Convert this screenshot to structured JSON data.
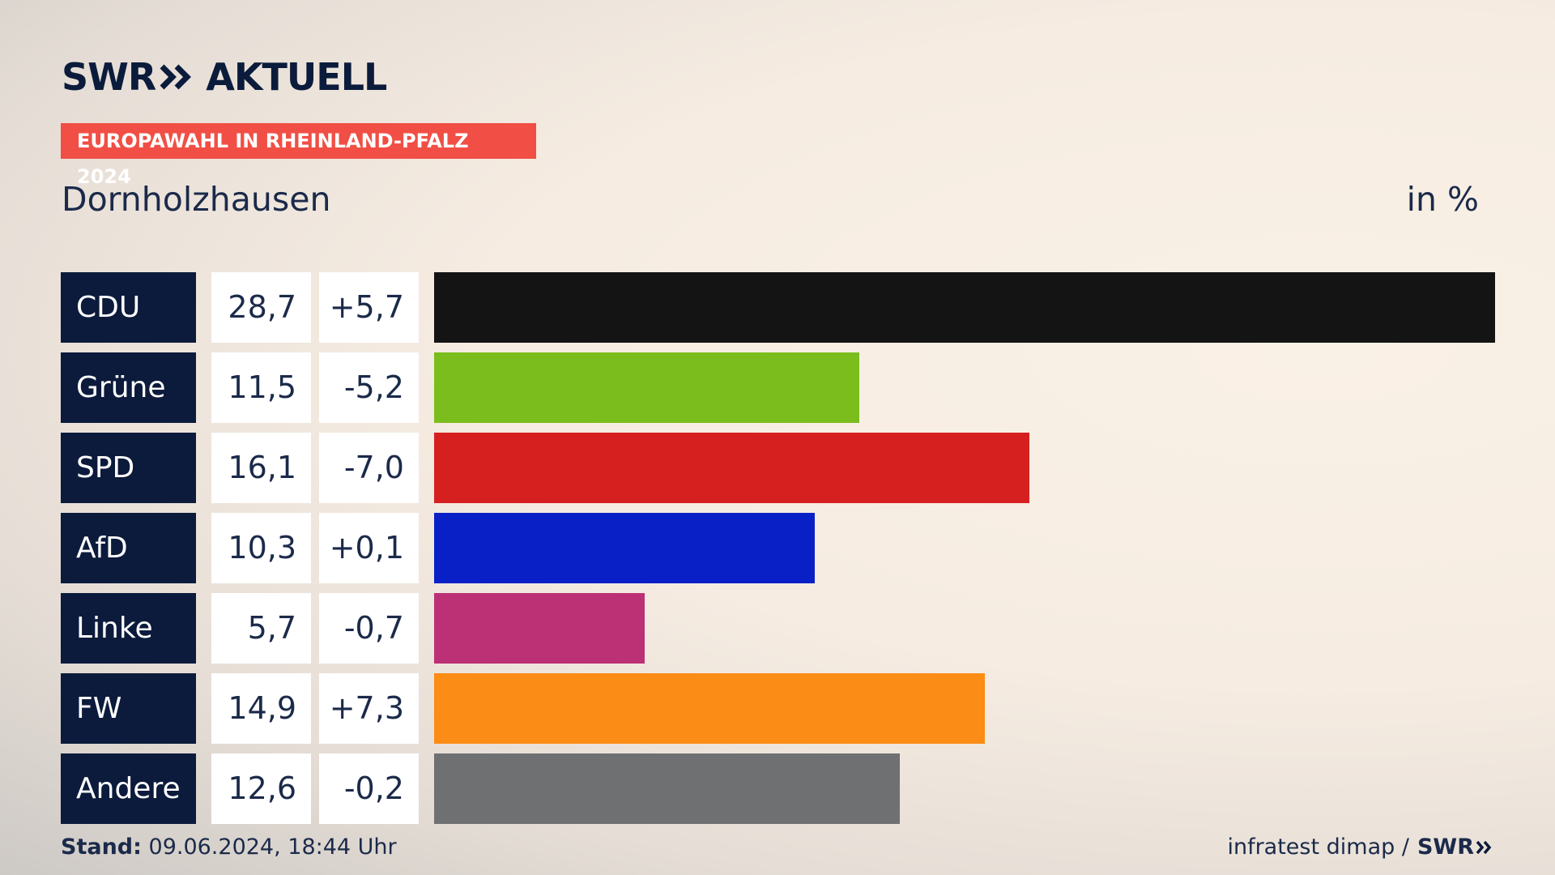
{
  "header": {
    "logo_left": "SWR",
    "logo_right": "AKTUELL",
    "badge": "EUROPAWAHL IN RHEINLAND-PFALZ 2024",
    "location": "Dornholzhausen",
    "unit": "in %"
  },
  "chart_data": {
    "type": "bar",
    "orientation": "horizontal",
    "title": "Dornholzhausen",
    "unit_label": "in %",
    "categories": [
      "CDU",
      "Grüne",
      "SPD",
      "AfD",
      "Linke",
      "FW",
      "Andere"
    ],
    "values": [
      28.7,
      11.5,
      16.1,
      10.3,
      5.7,
      14.9,
      12.6
    ],
    "value_labels": [
      "28,7",
      "11,5",
      "16,1",
      "10,3",
      "5,7",
      "14,9",
      "12,6"
    ],
    "diff_labels": [
      "+5,7",
      "-5,2",
      "-7,0",
      "+0,1",
      "-0,7",
      "+7,3",
      "-0,2"
    ],
    "colors": [
      "#141414",
      "#7bbd1c",
      "#d61f1f",
      "#0a20c7",
      "#bc3075",
      "#fb8c15",
      "#6f7072"
    ],
    "xlim": [
      0,
      28.7
    ]
  },
  "footer": {
    "stand_label": "Stand:",
    "stand_value": "09.06.2024, 18:44 Uhr",
    "source": "infratest dimap /",
    "source_logo": "SWR"
  }
}
